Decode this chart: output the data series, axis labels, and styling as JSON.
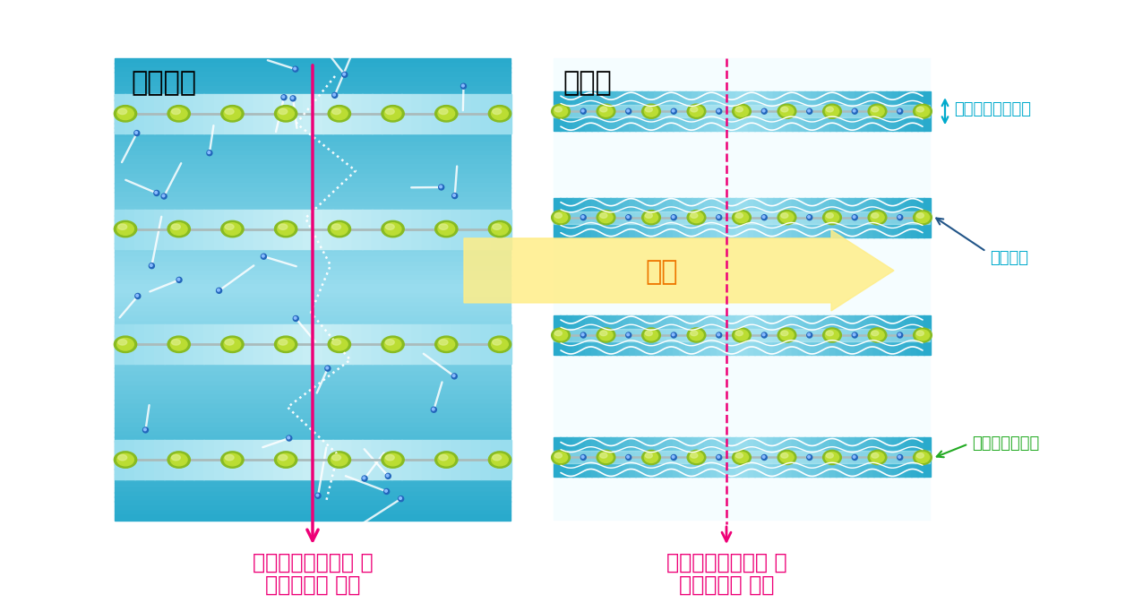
{
  "left_label": "ゼロ磁場",
  "right_label": "磁場中",
  "left_caption1": "電気の流れやすさ 大",
  "left_caption2": "（電気抵抗 小）",
  "right_caption1": "電気の流れやすさ 小",
  "right_caption2": "（電気抵抗 大）",
  "annotation_spread": "伝導電子の広がり",
  "annotation_electron": "伝導電子",
  "annotation_palladium": "パラジウム原子",
  "magnet_label": "磁場",
  "left_bg_dark": "#29AACC",
  "left_bg_light": "#99DDEE",
  "left_stripe_light": "#C8EEF5",
  "right_bg_white": "#F0FAFF",
  "right_band_dark": "#29AACC",
  "right_band_light": "#99DDEE",
  "right_band_inner": "#C0EEF5",
  "atom_outer": "#88BB22",
  "atom_mid": "#BBDD33",
  "atom_inner": "#DDEF88",
  "rail_color": "#AABBBB",
  "electron_outer": "#2266BB",
  "electron_inner": "#88BBFF",
  "white": "#FFFFFF",
  "magenta": "#EE0077",
  "cyan_annot": "#00AACC",
  "green_annot": "#22AA22",
  "yellow_fill": "#FFEE88",
  "yellow_edge": "#DDCC44",
  "orange_text": "#EE7700"
}
